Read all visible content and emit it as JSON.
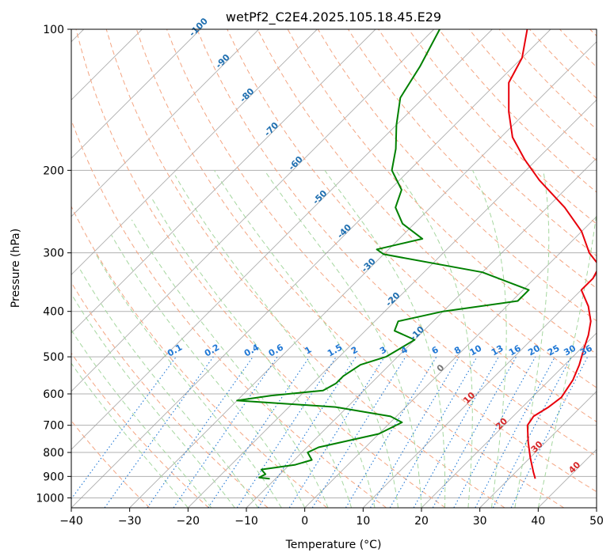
{
  "chart_data": {
    "type": "line",
    "title": "wetPf2_C2E4.2025.105.18.45.E29",
    "xlabel": "Temperature (°C)",
    "ylabel": "Pressure (hPa)",
    "xlim": [
      -40,
      50
    ],
    "ylim": [
      1050,
      100
    ],
    "y_scale": "log",
    "grid": true,
    "x_ticks": [
      -40,
      -30,
      -20,
      -10,
      0,
      10,
      20,
      30,
      40,
      50
    ],
    "y_ticks": [
      100,
      200,
      300,
      400,
      500,
      600,
      700,
      800,
      900,
      1000
    ],
    "colors": {
      "temperature": "#e8000b",
      "dewpoint": "#008000",
      "isotherm": "#999999",
      "dry_adiabat": "#f4a582",
      "moist_adiabat": "#a6d7a0",
      "mixing_ratio": "#1f77d4",
      "isotherm_label": "#1f6fb0"
    },
    "series": [
      {
        "key": "temperature",
        "points": [
          [
            34.5,
            910
          ],
          [
            33,
            880
          ],
          [
            30,
            820
          ],
          [
            27,
            760
          ],
          [
            24,
            700
          ],
          [
            23.5,
            670
          ],
          [
            24.5,
            640
          ],
          [
            25,
            610
          ],
          [
            24,
            560
          ],
          [
            22.5,
            520
          ],
          [
            20.5,
            480
          ],
          [
            19.5,
            460
          ],
          [
            19,
            450
          ],
          [
            17,
            420
          ],
          [
            14,
            390
          ],
          [
            10,
            360
          ],
          [
            10,
            340
          ],
          [
            9,
            320
          ],
          [
            5,
            300
          ],
          [
            0,
            270
          ],
          [
            -7,
            240
          ],
          [
            -16,
            210
          ],
          [
            -22,
            190
          ],
          [
            -28,
            170
          ],
          [
            -33,
            150
          ],
          [
            -38,
            130
          ],
          [
            -40,
            115
          ],
          [
            -44,
            100
          ]
        ]
      },
      {
        "key": "dewpoint",
        "points": [
          [
            -11,
            910
          ],
          [
            -13,
            905
          ],
          [
            -12.5,
            890
          ],
          [
            -14,
            870
          ],
          [
            -9,
            850
          ],
          [
            -7,
            830
          ],
          [
            -9,
            800
          ],
          [
            -8,
            780
          ],
          [
            0,
            730
          ],
          [
            2,
            690
          ],
          [
            -1,
            670
          ],
          [
            -12,
            640
          ],
          [
            -30,
            620
          ],
          [
            -25,
            605
          ],
          [
            -17,
            590
          ],
          [
            -16,
            570
          ],
          [
            -16,
            550
          ],
          [
            -15,
            520
          ],
          [
            -12,
            500
          ],
          [
            -11,
            480
          ],
          [
            -10,
            460
          ],
          [
            -15,
            440
          ],
          [
            -16,
            420
          ],
          [
            -10,
            400
          ],
          [
            1,
            380
          ],
          [
            1,
            360
          ],
          [
            -10,
            330
          ],
          [
            -30,
            302
          ],
          [
            -32,
            295
          ],
          [
            -26,
            280
          ],
          [
            -32,
            260
          ],
          [
            -36,
            240
          ],
          [
            -38,
            220
          ],
          [
            -43,
            200
          ],
          [
            -46,
            180
          ],
          [
            -50,
            160
          ],
          [
            -54,
            140
          ],
          [
            -56,
            120
          ],
          [
            -59,
            100
          ]
        ]
      }
    ],
    "isotherm_labels": [
      "-100",
      "-90",
      "-80",
      "-70",
      "-60",
      "-50",
      "-40",
      "-30",
      "-20",
      "-10",
      "0",
      "10",
      "20",
      "30",
      "40"
    ],
    "mixing_ratio_labels": [
      "0.1",
      "0.2",
      "0.4",
      "0.6",
      "1",
      "1.5",
      "2",
      "3",
      "4",
      "6",
      "8",
      "10",
      "13",
      "16",
      "20",
      "25",
      "30",
      "36"
    ]
  }
}
